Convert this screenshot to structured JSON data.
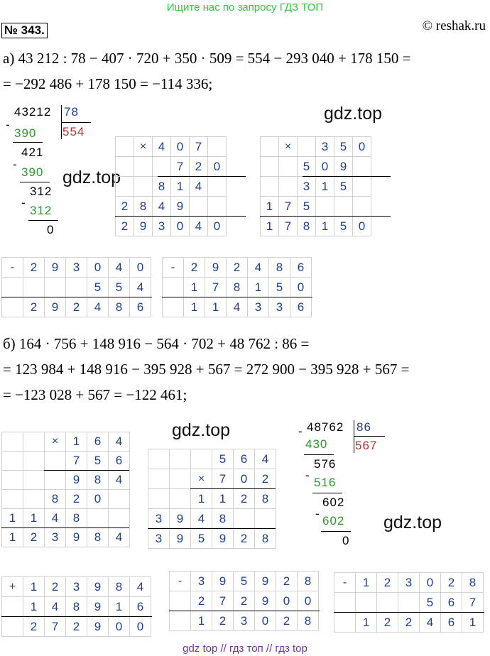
{
  "banner": "Ищите нас по запросу ГДЗ ТОП",
  "problem_number": "№ 343.",
  "site": "© reshak.ru",
  "part_a": {
    "line1": "а) 43 212 : 78 − 407 · 720 + 350 · 509 = 554 − 293 040 + 178 150 =",
    "line2": "= −292 486 + 178 150 = −114 336;"
  },
  "part_b": {
    "line1": "б) 164 · 756 + 148 916 − 564 · 702 + 48 762 : 86 =",
    "line2": "= 123 984 + 148 916 − 395 928 + 567 = 272 900 − 395 928 + 567 =",
    "line3": "= −123 028 + 567 = −122 461;"
  },
  "watermark": "gdz.top",
  "footer": "gdz top // гдз топ // гдз top",
  "longdiv_a": {
    "dividend": "43212",
    "divisor": "78",
    "quotient": "554",
    "steps": [
      "390",
      "421",
      "390",
      "312",
      "312",
      "0"
    ]
  },
  "longdiv_b": {
    "dividend": "48762",
    "divisor": "86",
    "quotient": "567",
    "steps": [
      "430",
      "576",
      "516",
      "602",
      "602",
      "0"
    ]
  },
  "grids": {
    "mul_407": [
      [
        "",
        "×",
        "4",
        "0",
        "7",
        ""
      ],
      [
        "",
        "",
        "",
        "7",
        "2",
        "0"
      ],
      [
        "",
        "",
        "8",
        "1",
        "4",
        ""
      ],
      [
        "2",
        "8",
        "4",
        "9",
        "",
        ""
      ],
      [
        "2",
        "9",
        "3",
        "0",
        "4",
        "0"
      ]
    ],
    "mul_350": [
      [
        "",
        "×",
        "",
        "3",
        "5",
        "0"
      ],
      [
        "",
        "",
        "5",
        "0",
        "9",
        ""
      ],
      [
        "",
        "",
        "3",
        "1",
        "5",
        ""
      ],
      [
        "1",
        "7",
        "5",
        "",
        "",
        ""
      ],
      [
        "1",
        "7",
        "8",
        "1",
        "5",
        "0"
      ]
    ],
    "sub_293": [
      [
        "-",
        "2",
        "9",
        "3",
        "0",
        "4",
        "0"
      ],
      [
        "",
        "",
        "",
        "",
        "5",
        "5",
        "4"
      ],
      [
        "",
        "2",
        "9",
        "2",
        "4",
        "8",
        "6"
      ]
    ],
    "sub_292": [
      [
        "-",
        "2",
        "9",
        "2",
        "4",
        "8",
        "6"
      ],
      [
        "",
        "1",
        "7",
        "8",
        "1",
        "5",
        "0"
      ],
      [
        "",
        "1",
        "1",
        "4",
        "3",
        "3",
        "6"
      ]
    ],
    "mul_164": [
      [
        "",
        "",
        "×",
        "1",
        "6",
        "4"
      ],
      [
        "",
        "",
        "",
        "7",
        "5",
        "6"
      ],
      [
        "",
        "",
        "",
        "9",
        "8",
        "4"
      ],
      [
        "",
        "",
        "8",
        "2",
        "0",
        ""
      ],
      [
        "1",
        "1",
        "4",
        "8",
        "",
        ""
      ],
      [
        "1",
        "2",
        "3",
        "9",
        "8",
        "4"
      ]
    ],
    "mul_564": [
      [
        "",
        "",
        "",
        "5",
        "6",
        "4"
      ],
      [
        "",
        "",
        "×",
        "7",
        "0",
        "2"
      ],
      [
        "",
        "",
        "1",
        "1",
        "2",
        "8"
      ],
      [
        "3",
        "9",
        "4",
        "8",
        "",
        ""
      ],
      [
        "3",
        "9",
        "5",
        "9",
        "2",
        "8"
      ]
    ],
    "add_123": [
      [
        "+",
        "1",
        "2",
        "3",
        "9",
        "8",
        "4"
      ],
      [
        "",
        "1",
        "4",
        "8",
        "9",
        "1",
        "6"
      ],
      [
        "",
        "2",
        "7",
        "2",
        "9",
        "0",
        "0"
      ]
    ],
    "sub_395": [
      [
        "-",
        "3",
        "9",
        "5",
        "9",
        "2",
        "8"
      ],
      [
        "",
        "2",
        "7",
        "2",
        "9",
        "0",
        "0"
      ],
      [
        "",
        "1",
        "2",
        "3",
        "0",
        "2",
        "8"
      ]
    ],
    "sub_123": [
      [
        "-",
        "1",
        "2",
        "3",
        "0",
        "2",
        "8"
      ],
      [
        "",
        "",
        "",
        "",
        "5",
        "6",
        "7"
      ],
      [
        "",
        "1",
        "2",
        "2",
        "4",
        "6",
        "1"
      ]
    ]
  }
}
